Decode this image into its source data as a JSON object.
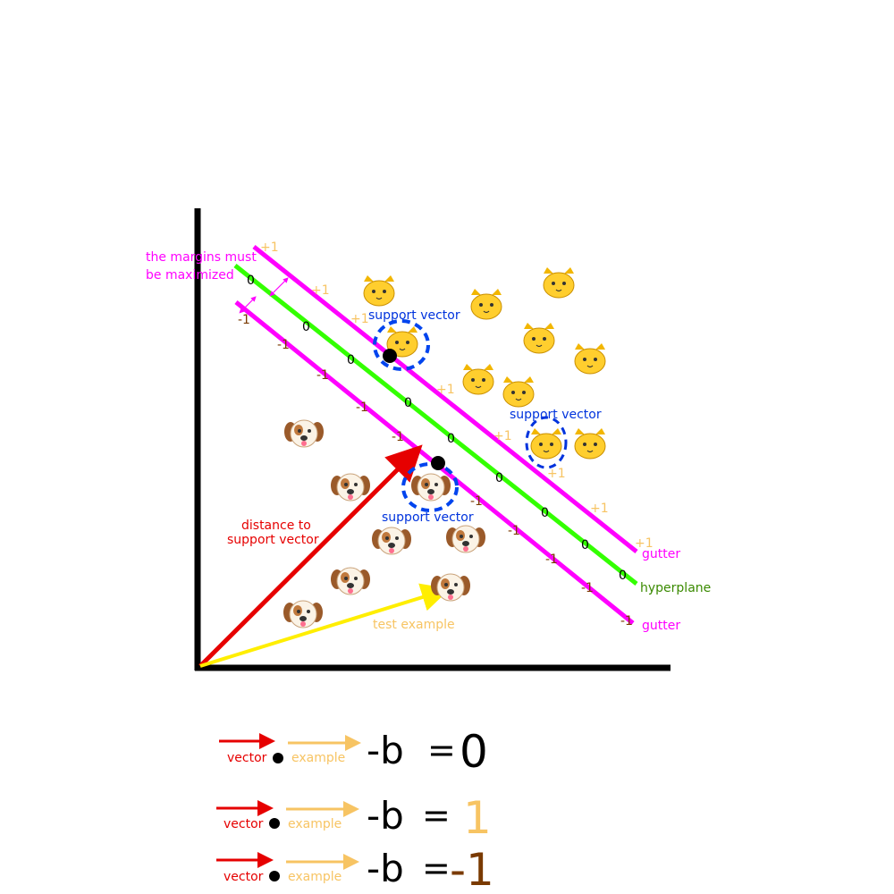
{
  "labels": {
    "margins_note_line1": "the margins must",
    "margins_note_line2": "be maximized",
    "support_vector": "support vector",
    "distance_line1": "distance to",
    "distance_line2": "support vector",
    "test_example": "test example",
    "gutter": "gutter",
    "hyperplane": "hyperplane",
    "plus_one": "+1",
    "zero": "0",
    "minus_one": "-1"
  },
  "equations": [
    {
      "vector": "vector",
      "example": "example",
      "minus_b": "-b",
      "equals": "=",
      "result": "0"
    },
    {
      "vector": "vector",
      "example": "example",
      "minus_b": "-b",
      "equals": "=",
      "result": "1"
    },
    {
      "vector": "vector",
      "example": "example",
      "minus_b": "-b",
      "equals": "=",
      "result": "-1"
    }
  ],
  "icons": {
    "cat": "cat-face-icon",
    "dog": "dog-face-icon"
  },
  "colors": {
    "gutter": "#ff00ff",
    "hyperplane": "#33ff00",
    "hyperplane_label": "#3a8a00",
    "support": "#0033dd",
    "distance": "#e60000",
    "test": "#ffff00",
    "test_label": "#f7c463",
    "minus_one_num": "#7a3a00"
  }
}
